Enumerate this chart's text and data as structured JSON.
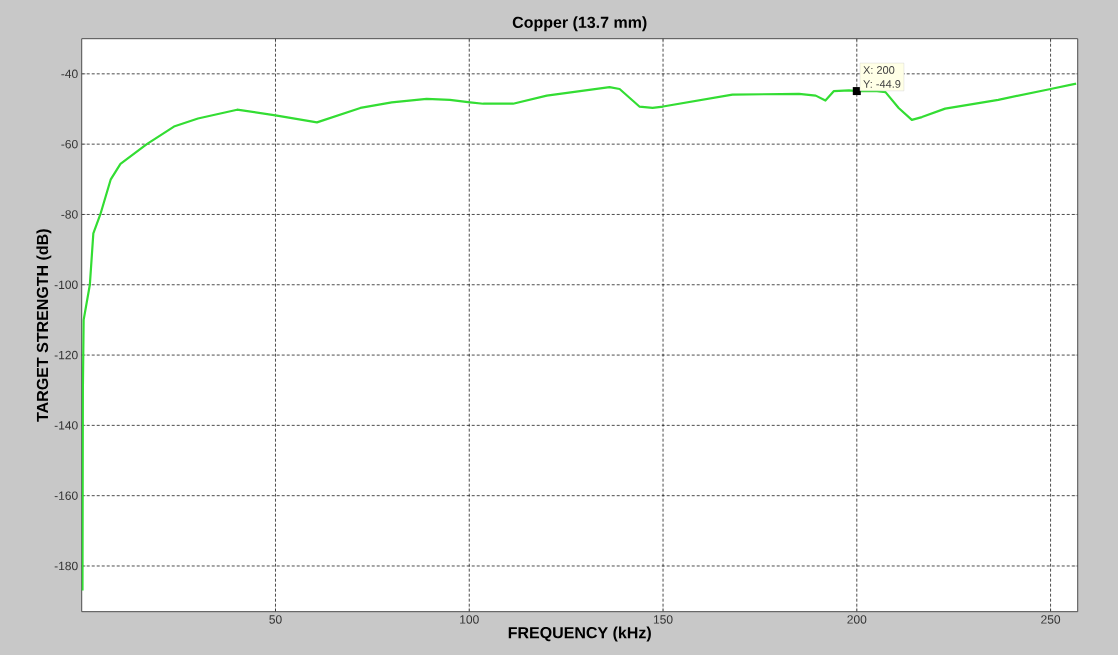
{
  "chart_data": {
    "type": "line",
    "title": "Copper (13.7 mm)",
    "xlabel": "FREQUENCY (kHz)",
    "ylabel": "TARGET STRENGTH (dB)",
    "x": [
      0.2,
      0.3,
      0.5,
      2.1,
      3,
      4.8,
      7.5,
      10,
      16.8,
      23.8,
      30,
      40.1,
      50,
      60.7,
      71.9,
      80,
      89,
      95,
      100.2,
      103.6,
      111.3,
      120,
      136.2,
      138.8,
      143.9,
      147.3,
      150,
      167.9,
      185.1,
      189.4,
      191.9,
      194.1,
      198,
      200,
      205.2,
      207.4,
      210.8,
      214.2,
      216.8,
      222.8,
      236.5,
      250,
      256.6
    ],
    "series": [
      {
        "color": "#33dd33",
        "values": [
          -187,
          -130,
          -110,
          -100,
          -85.4,
          -80,
          -70,
          -65.6,
          -60,
          -55,
          -52.7,
          -50.2,
          -51.8,
          -53.8,
          -49.7,
          -48.1,
          -47.1,
          -47.4,
          -48.1,
          -48.5,
          -48.5,
          -46.2,
          -43.8,
          -44.3,
          -49.3,
          -49.7,
          -49.3,
          -45.9,
          -45.7,
          -46.2,
          -47.6,
          -44.9,
          -44.7,
          -44.9,
          -44.9,
          -45.2,
          -49.7,
          -53.1,
          -52.3,
          -49.9,
          -47.4,
          -44.3,
          -42.8
        ]
      }
    ],
    "xlim": [
      0,
      257
    ],
    "ylim": [
      -193,
      -30
    ],
    "xticks": [
      50,
      100,
      150,
      200,
      250
    ],
    "yticks": [
      -180,
      -160,
      -140,
      -120,
      -100,
      -80,
      -60,
      -40
    ],
    "grid": true,
    "marker": "none",
    "line_style": "solid",
    "annotations": [
      {
        "text": "X: 200",
        "x": 200,
        "y": -44.9
      },
      "Y: -44.9"
    ]
  }
}
